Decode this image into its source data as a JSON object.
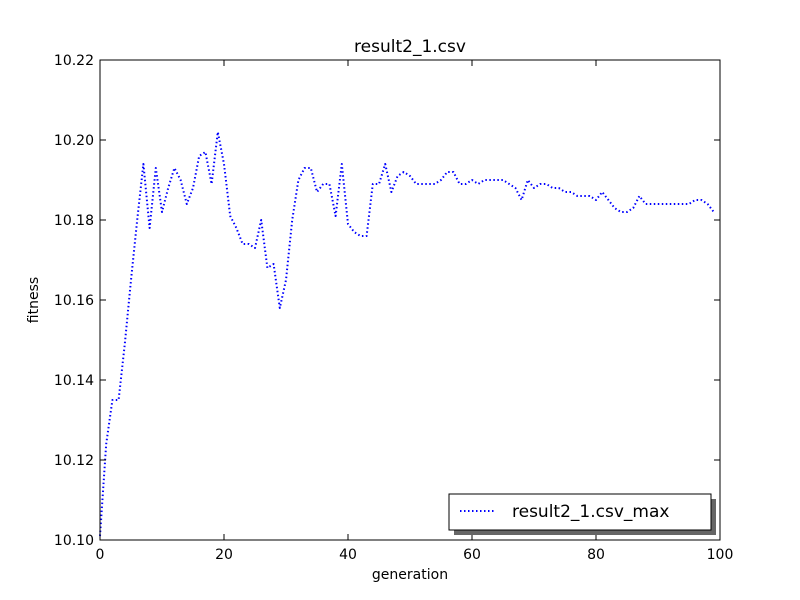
{
  "chart_data": {
    "type": "line",
    "title": "result2_1.csv",
    "xlabel": "generation",
    "ylabel": "fitness",
    "xlim": [
      0,
      100
    ],
    "ylim": [
      10.1,
      10.22
    ],
    "xticks": [
      0,
      20,
      40,
      60,
      80,
      100
    ],
    "xtick_labels": [
      "0",
      "20",
      "40",
      "60",
      "80",
      "100"
    ],
    "yticks": [
      10.1,
      10.12,
      10.14,
      10.16,
      10.18,
      10.2,
      10.22
    ],
    "ytick_labels": [
      "10.10",
      "10.12",
      "10.14",
      "10.16",
      "10.18",
      "10.20",
      "10.22"
    ],
    "grid": false,
    "legend_position": "lower-right",
    "series": [
      {
        "name": "result2_1.csv_max",
        "color": "#0000ff",
        "style": "dotted",
        "x": [
          0,
          1,
          2,
          3,
          4,
          5,
          6,
          7,
          8,
          9,
          10,
          11,
          12,
          13,
          14,
          15,
          16,
          17,
          18,
          19,
          20,
          21,
          22,
          23,
          24,
          25,
          26,
          27,
          28,
          29,
          30,
          31,
          32,
          33,
          34,
          35,
          36,
          37,
          38,
          39,
          40,
          41,
          42,
          43,
          44,
          45,
          46,
          47,
          48,
          49,
          50,
          51,
          52,
          53,
          54,
          55,
          56,
          57,
          58,
          59,
          60,
          61,
          62,
          63,
          64,
          65,
          66,
          67,
          68,
          69,
          70,
          71,
          72,
          73,
          74,
          75,
          76,
          77,
          78,
          79,
          80,
          81,
          82,
          83,
          84,
          85,
          86,
          87,
          88,
          89,
          90,
          91,
          92,
          93,
          94,
          95,
          96,
          97,
          98,
          99
        ],
        "values": [
          10.101,
          10.124,
          10.135,
          10.135,
          10.149,
          10.165,
          10.18,
          10.194,
          10.178,
          10.193,
          10.182,
          10.188,
          10.193,
          10.19,
          10.184,
          10.188,
          10.196,
          10.197,
          10.189,
          10.202,
          10.194,
          10.181,
          10.178,
          10.174,
          10.174,
          10.173,
          10.18,
          10.168,
          10.169,
          10.158,
          10.165,
          10.18,
          10.19,
          10.193,
          10.193,
          10.187,
          10.189,
          10.189,
          10.181,
          10.194,
          10.179,
          10.177,
          10.176,
          10.176,
          10.189,
          10.189,
          10.194,
          10.187,
          10.191,
          10.192,
          10.191,
          10.189,
          10.189,
          10.189,
          10.189,
          10.19,
          10.192,
          10.192,
          10.189,
          10.189,
          10.19,
          10.189,
          10.19,
          10.19,
          10.19,
          10.19,
          10.189,
          10.188,
          10.185,
          10.19,
          10.188,
          10.189,
          10.189,
          10.188,
          10.188,
          10.187,
          10.187,
          10.186,
          10.186,
          10.186,
          10.185,
          10.187,
          10.185,
          10.183,
          10.182,
          10.182,
          10.183,
          10.186,
          10.184,
          10.184,
          10.184,
          10.184,
          10.184,
          10.184,
          10.184,
          10.184,
          10.185,
          10.185,
          10.184,
          10.182
        ]
      }
    ]
  }
}
